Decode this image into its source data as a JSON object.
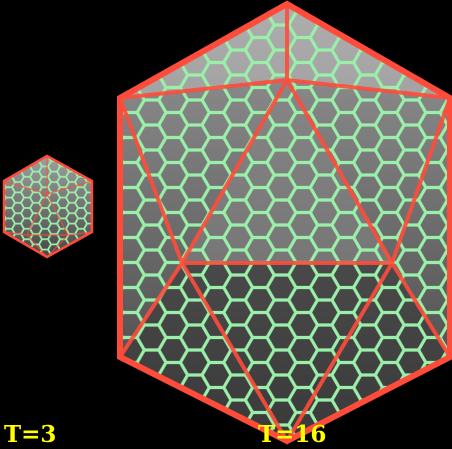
{
  "figure": {
    "labels": {
      "small": "T=3",
      "large": "T=16"
    },
    "colors": {
      "background": "#000000",
      "edge": "#ff4b3a",
      "mesh": "#9aefa9",
      "face": "#7b7b7b",
      "text": "#ffff00"
    }
  }
}
